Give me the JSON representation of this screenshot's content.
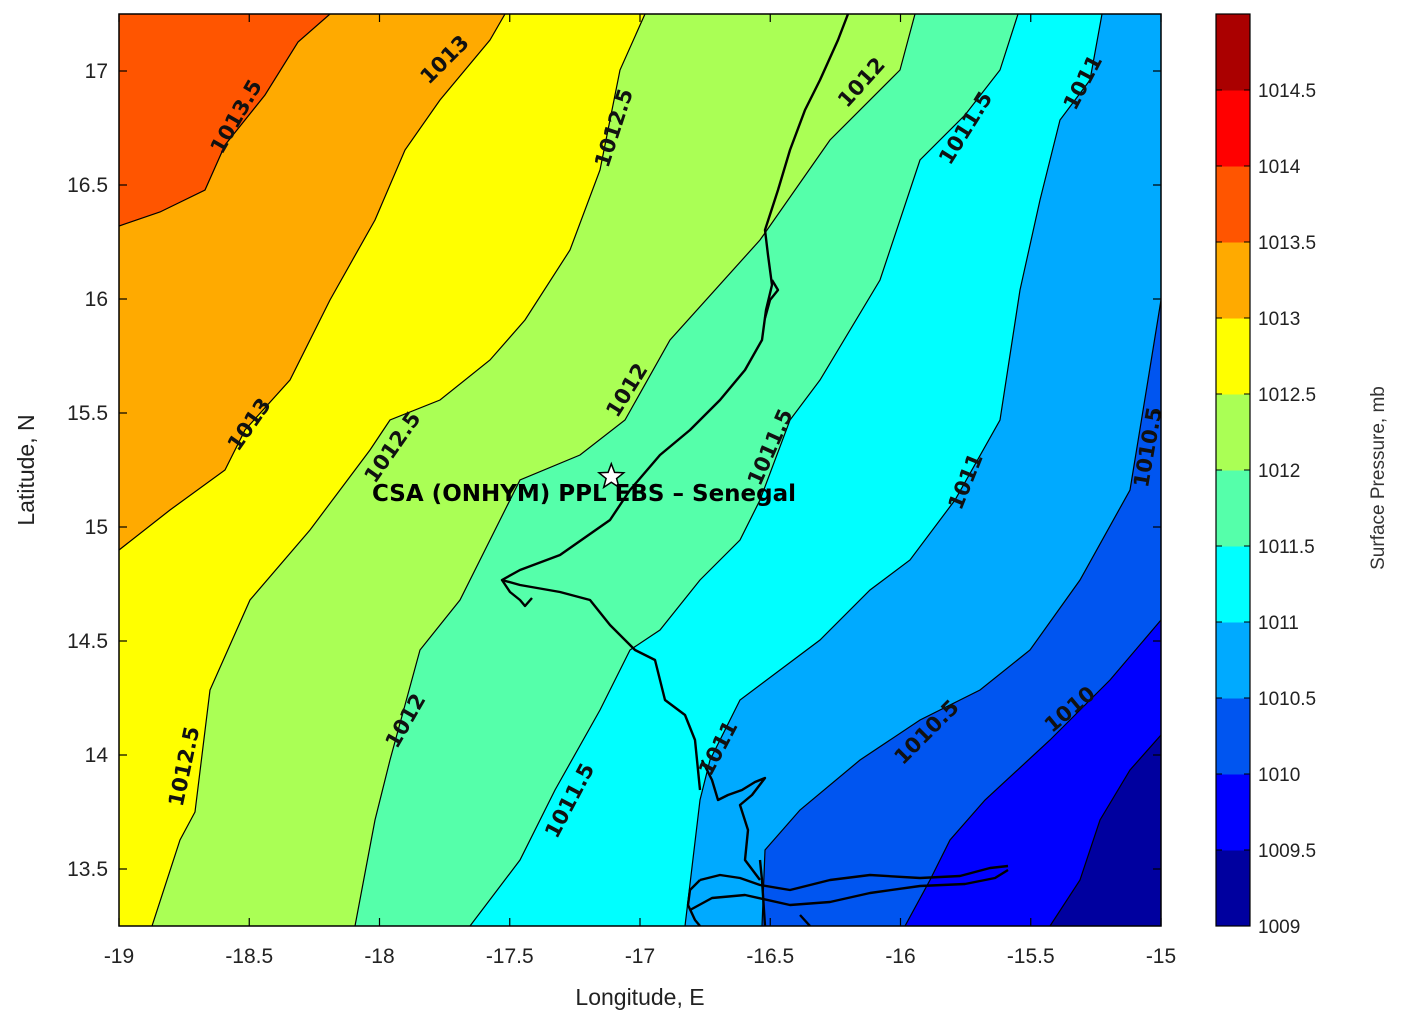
{
  "chart_data": {
    "type": "contour",
    "xlabel": "Longitude, E",
    "ylabel": "Latitude, N",
    "xlim": [
      -19,
      -15
    ],
    "ylim": [
      13.25,
      17.25
    ],
    "xticks": [
      "-19",
      "-18.5",
      "-18",
      "-17.5",
      "-17",
      "-16.5",
      "-16",
      "-15.5",
      "-15"
    ],
    "yticks": [
      "13.5",
      "14",
      "14.5",
      "15",
      "15.5",
      "16",
      "16.5",
      "17"
    ],
    "colorbar": {
      "label": "Surface Pressure, mb",
      "ticks": [
        "1009",
        "1009.5",
        "1010",
        "1010.5",
        "1011",
        "1011.5",
        "1012",
        "1012.5",
        "1013",
        "1013.5",
        "1014",
        "1014.5"
      ],
      "colors": [
        "#00009f",
        "#0000ff",
        "#0055f0",
        "#00aaff",
        "#00ffff",
        "#55ffaa",
        "#aaff55",
        "#ffff00",
        "#ffaa00",
        "#ff5500",
        "#ff0000",
        "#aa0000"
      ]
    },
    "levels": [
      1009.5,
      1010,
      1010.5,
      1011,
      1011.5,
      1012,
      1012.5,
      1013,
      1013.5
    ],
    "contour_labels": [
      {
        "text": "1013.5",
        "lon": -18.55,
        "lat": 16.8,
        "angle": -60
      },
      {
        "text": "1013",
        "lon": -17.75,
        "lat": 17.05,
        "angle": -45
      },
      {
        "text": "1012.5",
        "lon": -17.1,
        "lat": 16.75,
        "angle": -72
      },
      {
        "text": "1012",
        "lon": -16.15,
        "lat": 16.95,
        "angle": -48
      },
      {
        "text": "1011.5",
        "lon": -15.75,
        "lat": 16.75,
        "angle": -58
      },
      {
        "text": "1011",
        "lon": -15.3,
        "lat": 16.95,
        "angle": -62
      },
      {
        "text": "1013",
        "lon": -18.5,
        "lat": 15.45,
        "angle": -55
      },
      {
        "text": "1012.5",
        "lon": -17.95,
        "lat": 15.35,
        "angle": -55
      },
      {
        "text": "1012",
        "lon": -17.05,
        "lat": 15.6,
        "angle": -58
      },
      {
        "text": "1011.5",
        "lon": -16.5,
        "lat": 15.35,
        "angle": -66
      },
      {
        "text": "1011",
        "lon": -15.75,
        "lat": 15.2,
        "angle": -68
      },
      {
        "text": "1010.5",
        "lon": -15.05,
        "lat": 15.35,
        "angle": -80
      },
      {
        "text": "1012.5",
        "lon": -18.75,
        "lat": 13.95,
        "angle": -78
      },
      {
        "text": "1012",
        "lon": -17.9,
        "lat": 14.15,
        "angle": -60
      },
      {
        "text": "1011.5",
        "lon": -17.27,
        "lat": 13.8,
        "angle": -62
      },
      {
        "text": "1011",
        "lon": -16.7,
        "lat": 14.03,
        "angle": -62
      },
      {
        "text": "1010.5",
        "lon": -15.9,
        "lat": 14.1,
        "angle": -45
      },
      {
        "text": "1010",
        "lon": -15.35,
        "lat": 14.2,
        "angle": -40
      }
    ],
    "site": {
      "name": "CSA (ONHYM) PPL EBS  – Senegal",
      "lon": -17.11,
      "lat": 15.22
    }
  },
  "colors": {
    "contour_line": "#000000",
    "coastline": "#000000",
    "frame": "#000000"
  }
}
